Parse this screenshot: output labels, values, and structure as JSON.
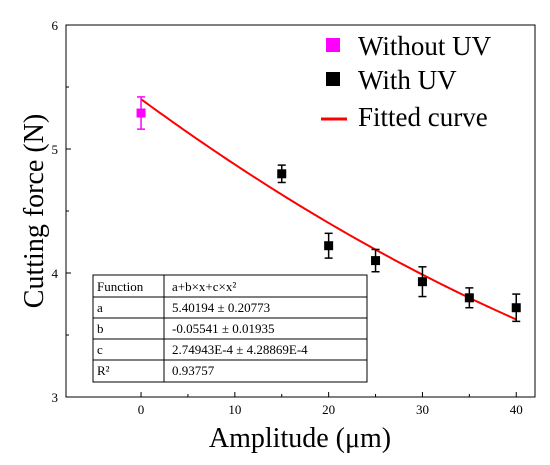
{
  "chart_data": {
    "type": "scatter",
    "xlabel": "Amplitude (μm)",
    "ylabel": "Cutting force (N)",
    "xlim": [
      -8,
      42
    ],
    "ylim": [
      3,
      6
    ],
    "xticks": [
      0,
      10,
      20,
      30,
      40
    ],
    "yticks": [
      3,
      4,
      5,
      6
    ],
    "legend_position": "top-right",
    "series": [
      {
        "name": "Without UV",
        "color": "#ff00ff",
        "marker": "square",
        "x": [
          0
        ],
        "y": [
          5.29
        ],
        "err": [
          0.13
        ]
      },
      {
        "name": "With UV",
        "color": "#000000",
        "marker": "square",
        "x": [
          15,
          20,
          25,
          30,
          35,
          40
        ],
        "y": [
          4.8,
          4.22,
          4.1,
          3.93,
          3.8,
          3.72
        ],
        "err": [
          0.07,
          0.1,
          0.09,
          0.12,
          0.08,
          0.11
        ]
      }
    ],
    "fit": {
      "name": "Fitted curve",
      "color": "#ff0000",
      "a": 5.40194,
      "b": -0.05541,
      "c": 0.000274943,
      "x_range": [
        0,
        40
      ]
    },
    "fit_table": {
      "rows": [
        [
          "Function",
          "a+b×x+c×x²"
        ],
        [
          "a",
          "5.40194 ± 0.20773"
        ],
        [
          "b",
          "-0.05541 ± 0.01935"
        ],
        [
          "c",
          "2.74943E-4 ± 4.28869E-4"
        ],
        [
          "R²",
          "0.93757"
        ]
      ]
    }
  }
}
